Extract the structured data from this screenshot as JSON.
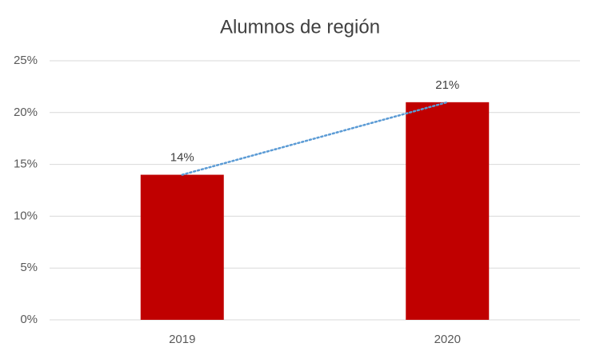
{
  "chart_data": {
    "type": "bar",
    "title": "Alumnos de región",
    "categories": [
      "2019",
      "2020"
    ],
    "values": [
      14,
      21
    ],
    "value_labels": [
      "14%",
      "21%"
    ],
    "color": "#c00000",
    "ylim": [
      0,
      25
    ],
    "yticks": [
      {
        "value": 0,
        "label": "0%"
      },
      {
        "value": 5,
        "label": "5%"
      },
      {
        "value": 10,
        "label": "10%"
      },
      {
        "value": 15,
        "label": "15%"
      },
      {
        "value": 20,
        "label": "20%"
      },
      {
        "value": 25,
        "label": "25%"
      }
    ],
    "grid": true,
    "trendline": true,
    "trendline_color": "#5b9bd5"
  }
}
